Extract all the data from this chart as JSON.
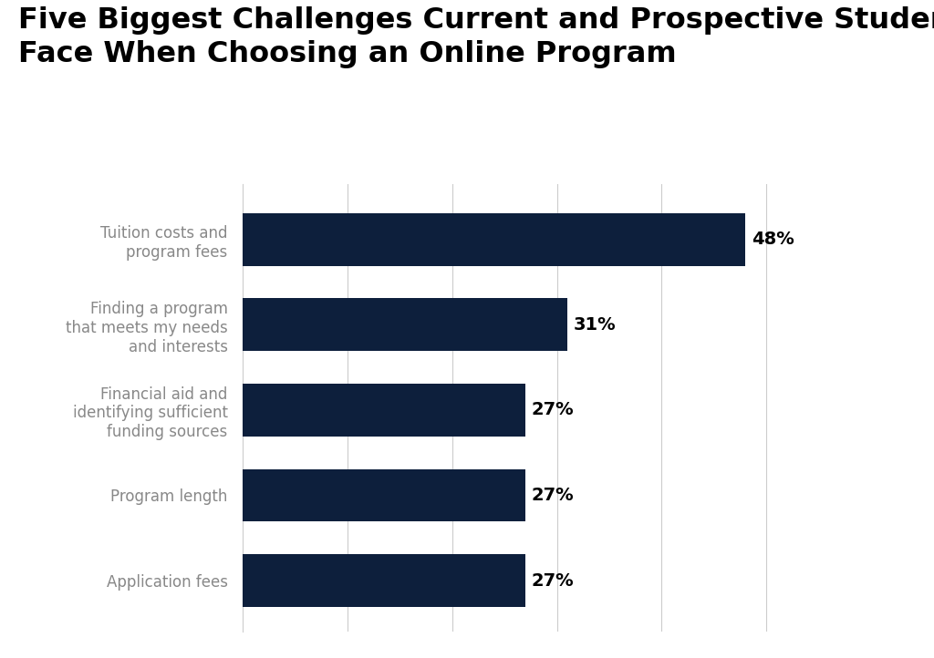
{
  "title": "Five Biggest Challenges Current and Prospective Students\nFace When Choosing an Online Program",
  "categories": [
    "Application fees",
    "Program length",
    "Financial aid and\nidentifying sufficient\nfunding sources",
    "Finding a program\nthat meets my needs\nand interests",
    "Tuition costs and\nprogram fees"
  ],
  "values": [
    27,
    27,
    27,
    31,
    48
  ],
  "labels": [
    "27%",
    "27%",
    "27%",
    "31%",
    "48%"
  ],
  "bar_color": "#0d1f3c",
  "background_color": "#ffffff",
  "title_fontsize": 23,
  "tick_fontsize": 12,
  "value_fontsize": 14,
  "tick_color": "#888888",
  "xlim": [
    0,
    58
  ]
}
